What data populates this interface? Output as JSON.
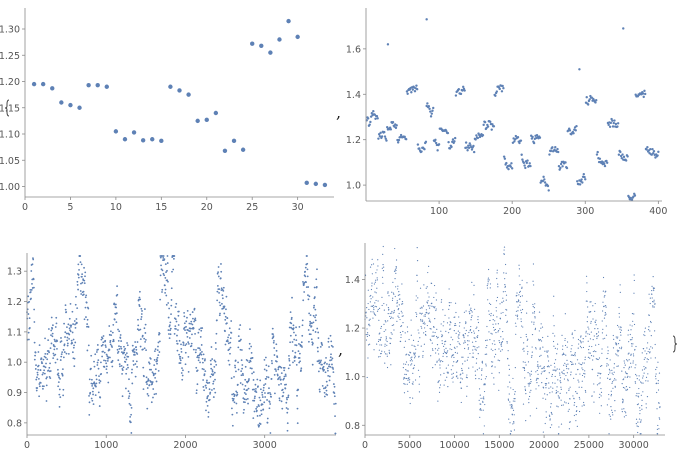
{
  "figure": {
    "comma_char": ","
  },
  "chart_data": [
    {
      "type": "scatter",
      "color": "#5e81b5",
      "grid": false,
      "xlim": [
        0,
        34
      ],
      "ylim": [
        0.98,
        1.34
      ],
      "x_ticks": [
        0,
        5,
        10,
        15,
        20,
        25,
        30
      ],
      "x_tick_labels": [
        "0",
        "5",
        "10",
        "15",
        "20",
        "25",
        "30"
      ],
      "y_ticks": [
        1.0,
        1.05,
        1.1,
        1.15,
        1.2,
        1.25,
        1.3
      ],
      "y_tick_labels": [
        "1.00",
        "1.05",
        "1.10",
        "1.15",
        "1.20",
        "1.25",
        "1.30"
      ],
      "x": [
        1,
        2,
        3,
        4,
        5,
        6,
        7,
        8,
        9,
        10,
        11,
        12,
        13,
        14,
        15,
        16,
        17,
        18,
        19,
        20,
        21,
        22,
        23,
        24,
        25,
        26,
        27,
        28,
        29,
        30,
        31,
        32,
        33
      ],
      "y": [
        1.195,
        1.195,
        1.187,
        1.16,
        1.155,
        1.15,
        1.193,
        1.193,
        1.19,
        1.105,
        1.09,
        1.103,
        1.088,
        1.09,
        1.087,
        1.19,
        1.183,
        1.175,
        1.125,
        1.127,
        1.14,
        1.068,
        1.087,
        1.07,
        1.272,
        1.268,
        1.255,
        1.28,
        1.315,
        1.285,
        1.007,
        1.005,
        1.003
      ]
    },
    {
      "type": "scatter",
      "color": "#5e81b5",
      "grid": false,
      "xlim": [
        0,
        405
      ],
      "ylim": [
        0.93,
        1.78
      ],
      "x_ticks": [
        100,
        200,
        300,
        400
      ],
      "x_tick_labels": [
        "100",
        "200",
        "300",
        "400"
      ],
      "y_ticks": [
        1.0,
        1.2,
        1.4,
        1.6
      ],
      "y_tick_labels": [
        "1.0",
        "1.2",
        "1.4",
        "1.6"
      ],
      "series_model": {
        "n": 400,
        "x_start": 1,
        "x_step": 1
      },
      "level_segments": [
        {
          "x": [
            1,
            16
          ],
          "y": 1.29
        },
        {
          "x": [
            17,
            28
          ],
          "y": 1.2
        },
        {
          "x": [
            29,
            42
          ],
          "y": 1.27
        },
        {
          "x": [
            43,
            55
          ],
          "y": 1.2
        },
        {
          "x": [
            56,
            70
          ],
          "y": 1.4
        },
        {
          "x": [
            71,
            82
          ],
          "y": 1.17
        },
        {
          "x": [
            83,
            92
          ],
          "y": 1.33
        },
        {
          "x": [
            93,
            100
          ],
          "y": 1.18
        },
        {
          "x": [
            101,
            112
          ],
          "y": 1.25
        },
        {
          "x": [
            113,
            122
          ],
          "y": 1.18
        },
        {
          "x": [
            123,
            135
          ],
          "y": 1.38
        },
        {
          "x": [
            136,
            148
          ],
          "y": 1.14
        },
        {
          "x": [
            149,
            160
          ],
          "y": 1.2
        },
        {
          "x": [
            161,
            175
          ],
          "y": 1.25
        },
        {
          "x": [
            176,
            188
          ],
          "y": 1.4
        },
        {
          "x": [
            189,
            200
          ],
          "y": 1.08
        },
        {
          "x": [
            201,
            212
          ],
          "y": 1.17
        },
        {
          "x": [
            213,
            225
          ],
          "y": 1.1
        },
        {
          "x": [
            226,
            238
          ],
          "y": 1.22
        },
        {
          "x": [
            239,
            250
          ],
          "y": 1.03
        },
        {
          "x": [
            251,
            263
          ],
          "y": 1.16
        },
        {
          "x": [
            264,
            275
          ],
          "y": 1.1
        },
        {
          "x": [
            276,
            288
          ],
          "y": 1.25
        },
        {
          "x": [
            289,
            300
          ],
          "y": 1.02
        },
        {
          "x": [
            301,
            315
          ],
          "y": 1.35
        },
        {
          "x": [
            316,
            330
          ],
          "y": 1.12
        },
        {
          "x": [
            331,
            345
          ],
          "y": 1.3
        },
        {
          "x": [
            346,
            358
          ],
          "y": 1.15
        },
        {
          "x": [
            359,
            368
          ],
          "y": 0.96
        },
        {
          "x": [
            369,
            382
          ],
          "y": 1.41
        },
        {
          "x": [
            383,
            400
          ],
          "y": 1.15
        }
      ],
      "outliers": [
        {
          "x": 30,
          "y": 1.62
        },
        {
          "x": 83,
          "y": 1.73
        },
        {
          "x": 292,
          "y": 1.51
        },
        {
          "x": 352,
          "y": 1.69
        }
      ],
      "spread": 0.05
    },
    {
      "type": "scatter",
      "color": "#5e81b5",
      "grid": false,
      "xlim": [
        0,
        3900
      ],
      "ylim": [
        0.76,
        1.36
      ],
      "x_ticks": [
        0,
        1000,
        2000,
        3000
      ],
      "x_tick_labels": [
        "0",
        "1000",
        "2000",
        "3000"
      ],
      "y_ticks": [
        0.8,
        0.9,
        1.0,
        1.1,
        1.2,
        1.3
      ],
      "y_tick_labels": [
        "0.8",
        "0.9",
        "1.0",
        "1.1",
        "1.2",
        "1.3"
      ],
      "series_model": {
        "n": 1300,
        "x_start": 0,
        "x_step": 3
      },
      "level_segments": [
        {
          "x": [
            0,
            180
          ],
          "y": 1.1
        },
        {
          "x": [
            180,
            420
          ],
          "y": 1.0
        },
        {
          "x": [
            420,
            600
          ],
          "y": 1.1
        },
        {
          "x": [
            600,
            780
          ],
          "y": 1.2
        },
        {
          "x": [
            780,
            960
          ],
          "y": 1.0
        },
        {
          "x": [
            960,
            1140
          ],
          "y": 1.1
        },
        {
          "x": [
            1140,
            1320
          ],
          "y": 0.95
        },
        {
          "x": [
            1320,
            1500
          ],
          "y": 1.1
        },
        {
          "x": [
            1500,
            1680
          ],
          "y": 1.02
        },
        {
          "x": [
            1680,
            1860
          ],
          "y": 1.2
        },
        {
          "x": [
            1860,
            2040
          ],
          "y": 1.0
        },
        {
          "x": [
            2040,
            2220
          ],
          "y": 1.05
        },
        {
          "x": [
            2220,
            2400
          ],
          "y": 0.97
        },
        {
          "x": [
            2400,
            2580
          ],
          "y": 1.12
        },
        {
          "x": [
            2580,
            2760
          ],
          "y": 0.98
        },
        {
          "x": [
            2760,
            2940
          ],
          "y": 0.9
        },
        {
          "x": [
            2940,
            3120
          ],
          "y": 1.0
        },
        {
          "x": [
            3120,
            3300
          ],
          "y": 0.93
        },
        {
          "x": [
            3300,
            3480
          ],
          "y": 1.05
        },
        {
          "x": [
            3480,
            3660
          ],
          "y": 1.15
        },
        {
          "x": [
            3660,
            3840
          ],
          "y": 0.95
        }
      ],
      "spread": 0.2
    },
    {
      "type": "scatter",
      "color": "#5e81b5",
      "grid": false,
      "xlim": [
        0,
        33500
      ],
      "ylim": [
        0.76,
        1.55
      ],
      "x_ticks": [
        0,
        5000,
        10000,
        15000,
        20000,
        25000,
        30000
      ],
      "x_tick_labels": [
        "0",
        "5000",
        "10000",
        "15000",
        "20000",
        "25000",
        "30000"
      ],
      "y_ticks": [
        0.8,
        1.0,
        1.2,
        1.4
      ],
      "y_tick_labels": [
        "0.8",
        "1.0",
        "1.2",
        "1.4"
      ],
      "series_model": {
        "n": 1600,
        "x_start": 0,
        "x_step": 20.6
      },
      "level_segments": [
        {
          "x": [
            0,
            2000
          ],
          "y": 1.15
        },
        {
          "x": [
            2000,
            4000
          ],
          "y": 1.2
        },
        {
          "x": [
            4000,
            6000
          ],
          "y": 1.1
        },
        {
          "x": [
            6000,
            8000
          ],
          "y": 1.18
        },
        {
          "x": [
            8000,
            10000
          ],
          "y": 1.05
        },
        {
          "x": [
            10000,
            12000
          ],
          "y": 1.1
        },
        {
          "x": [
            12000,
            14000
          ],
          "y": 1.05
        },
        {
          "x": [
            14000,
            16000
          ],
          "y": 1.2
        },
        {
          "x": [
            16000,
            18000
          ],
          "y": 1.05
        },
        {
          "x": [
            18000,
            20000
          ],
          "y": 1.08
        },
        {
          "x": [
            20000,
            22000
          ],
          "y": 1.02
        },
        {
          "x": [
            22000,
            24000
          ],
          "y": 1.05
        },
        {
          "x": [
            24000,
            26000
          ],
          "y": 1.1
        },
        {
          "x": [
            26000,
            28000
          ],
          "y": 1.0
        },
        {
          "x": [
            28000,
            30000
          ],
          "y": 0.95
        },
        {
          "x": [
            30000,
            32000
          ],
          "y": 1.0
        },
        {
          "x": [
            32000,
            33500
          ],
          "y": 1.05
        }
      ],
      "spread": 0.35
    }
  ]
}
